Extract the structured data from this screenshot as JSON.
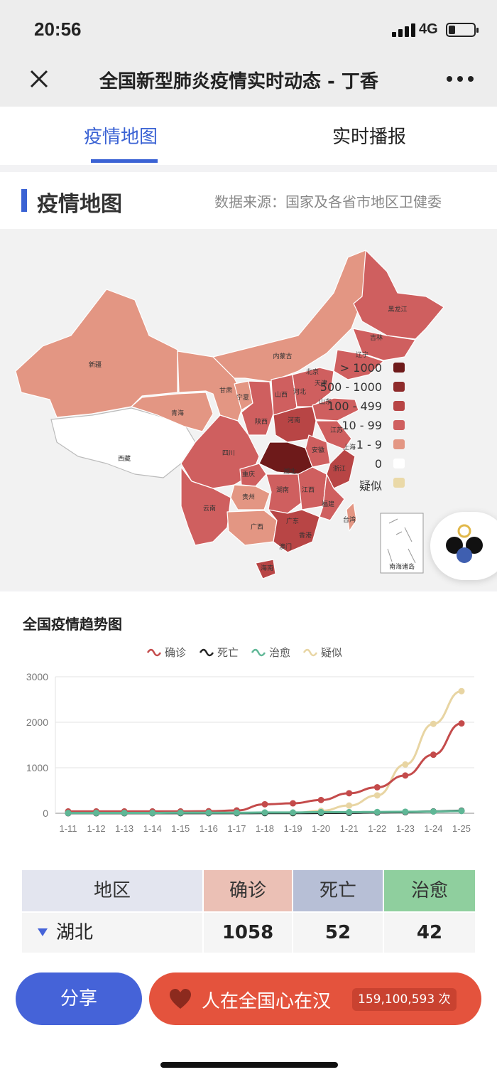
{
  "status_bar": {
    "time": "20:56",
    "network": "4G"
  },
  "nav": {
    "title": "全国新型肺炎疫情实时动态 - 丁香"
  },
  "tabs": [
    {
      "label": "疫情地图",
      "active": true
    },
    {
      "label": "实时播报",
      "active": false
    }
  ],
  "section": {
    "title": "疫情地图",
    "source": "数据来源：国家及各省市地区卫健委"
  },
  "map": {
    "province_labels": [
      "新疆",
      "西藏",
      "青海",
      "甘肃",
      "内蒙古",
      "宁夏",
      "陕西",
      "山西",
      "河北",
      "北京",
      "天津",
      "辽宁",
      "吉林",
      "黑龙江",
      "山东",
      "河南",
      "江苏",
      "安徽",
      "湖北",
      "重庆",
      "四川",
      "贵州",
      "湖南",
      "江西",
      "浙江",
      "上海",
      "福建",
      "云南",
      "广西",
      "广东",
      "香港",
      "澳门",
      "海南",
      "台湾"
    ],
    "inset_label": "南海诸岛",
    "legend": [
      {
        "label": "> 1000",
        "color": "#6e1a1a"
      },
      {
        "label": "500 - 1000",
        "color": "#8e2b2b"
      },
      {
        "label": "100 - 499",
        "color": "#b84545"
      },
      {
        "label": "10 - 99",
        "color": "#cf5f5f"
      },
      {
        "label": "1 - 9",
        "color": "#e39683"
      },
      {
        "label": "0",
        "color": "#ffffff"
      },
      {
        "label": "疑似",
        "color": "#ead9a8"
      }
    ]
  },
  "chart_title": "全国疫情趋势图",
  "chart_data": {
    "type": "line",
    "title": "全国疫情趋势图",
    "categories": [
      "1-11",
      "1-12",
      "1-13",
      "1-14",
      "1-15",
      "1-16",
      "1-17",
      "1-18",
      "1-19",
      "1-20",
      "1-21",
      "1-22",
      "1-23",
      "1-24",
      "1-25"
    ],
    "ylim": [
      0,
      3000
    ],
    "yticks": [
      0,
      1000,
      2000,
      3000
    ],
    "grid": true,
    "legend_position": "top",
    "series": [
      {
        "name": "确诊",
        "color": "#c44b4b",
        "values": [
          41,
          41,
          41,
          41,
          41,
          45,
          62,
          198,
          218,
          291,
          440,
          571,
          830,
          1287,
          1975
        ]
      },
      {
        "name": "死亡",
        "color": "#222222",
        "values": [
          1,
          1,
          1,
          1,
          2,
          2,
          2,
          3,
          3,
          6,
          9,
          17,
          25,
          41,
          56
        ]
      },
      {
        "name": "治愈",
        "color": "#5fb796",
        "values": [
          5,
          7,
          7,
          7,
          12,
          12,
          12,
          17,
          17,
          25,
          25,
          28,
          34,
          38,
          49
        ]
      },
      {
        "name": "疑似",
        "color": "#e8d5a3",
        "values": [
          null,
          null,
          null,
          null,
          null,
          null,
          null,
          null,
          0,
          54,
          169,
          393,
          1072,
          1965,
          2684
        ]
      }
    ]
  },
  "table": {
    "headers": [
      {
        "label": "地区",
        "bg": "#e3e5ef"
      },
      {
        "label": "确诊",
        "bg": "#ebc0b5"
      },
      {
        "label": "死亡",
        "bg": "#b7bfd6"
      },
      {
        "label": "治愈",
        "bg": "#8fcf9e"
      }
    ],
    "row": {
      "region": "湖北",
      "confirmed": "1058",
      "deaths": "52",
      "cured": "42"
    }
  },
  "bottom": {
    "share_label": "分享",
    "support_label": "人在全国心在汉",
    "support_count": "159,100,593 次"
  }
}
